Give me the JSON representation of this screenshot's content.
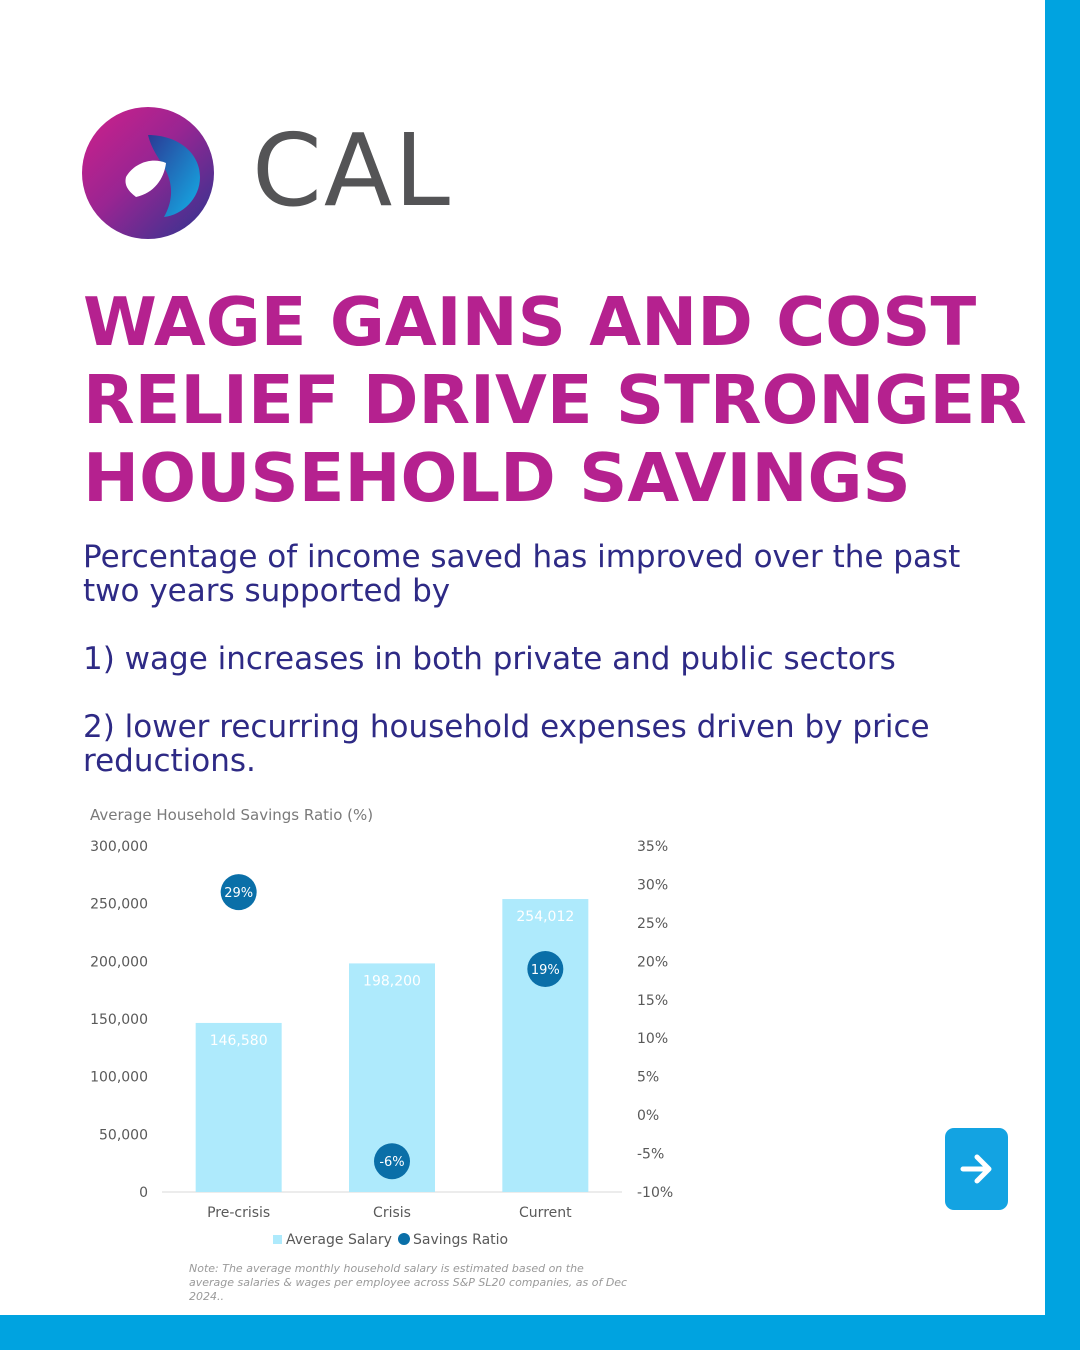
{
  "brand": {
    "name": "CAL"
  },
  "headline": {
    "lines": [
      "WAGE GAINS AND COST",
      "RELIEF DRIVE STRONGER",
      "HOUSEHOLD SAVINGS"
    ]
  },
  "body": {
    "intro": "Percentage of income saved has improved over the past two years supported by",
    "point1": "1) wage increases in both private and public sectors",
    "point2": "2) lower recurring household expenses driven by price reductions."
  },
  "colors": {
    "accent": "#b5218f",
    "text": "#2e2a85",
    "bar": "#aeeafc",
    "dot": "#0a6fa8",
    "frame": "#00a3e0"
  },
  "nav": {
    "next_icon": "arrow-right-icon"
  },
  "chart_data": {
    "type": "bar",
    "title": "Average Household Savings Ratio (%)",
    "categories": [
      "Pre-crisis",
      "Crisis",
      "Current"
    ],
    "series": [
      {
        "name": "Average Salary",
        "type": "bar",
        "axis": "left",
        "values": [
          146580,
          198200,
          254012
        ],
        "labels": [
          "146,580",
          "198,200",
          "254,012"
        ]
      },
      {
        "name": "Savings Ratio",
        "type": "scatter",
        "axis": "right",
        "values": [
          29,
          -6,
          19
        ],
        "labels": [
          "29%",
          "-6%",
          "19%"
        ]
      }
    ],
    "y_left": {
      "ylim": [
        0,
        300000
      ],
      "ticks": [
        "0",
        "50,000",
        "100,000",
        "150,000",
        "200,000",
        "250,000",
        "300,000"
      ]
    },
    "y_right": {
      "ylim": [
        -10,
        35
      ],
      "ticks": [
        "-10%",
        "-5%",
        "0%",
        "5%",
        "10%",
        "15%",
        "20%",
        "25%",
        "30%",
        "35%"
      ]
    },
    "legend": "bottom",
    "grid": false,
    "note": "Note: The average monthly household salary is estimated based on the average salaries & wages per employee across S&P SL20 companies, as of Dec 2024.."
  }
}
